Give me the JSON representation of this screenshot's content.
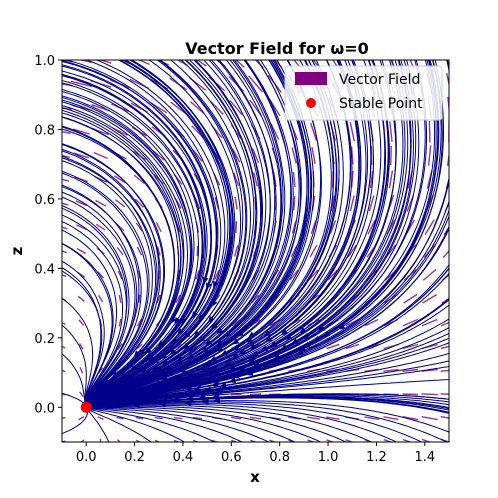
{
  "chart_data": {
    "type": "streamplot",
    "title": "Vector Field for ω=0",
    "xlabel": "x",
    "ylabel": "z",
    "xlim": [
      -0.1,
      1.5
    ],
    "ylim": [
      -0.1,
      1.0
    ],
    "xticks": [
      "0.0",
      "0.2",
      "0.4",
      "0.6",
      "0.8",
      "1.0",
      "1.2",
      "1.4"
    ],
    "yticks": [
      "0.0",
      "0.2",
      "0.4",
      "0.6",
      "0.8",
      "1.0"
    ],
    "grid": false,
    "legend_position": "top-right",
    "series": [
      {
        "name": "Vector Field",
        "kind": "quiver",
        "color": "#800080"
      },
      {
        "name": "Stable Point",
        "kind": "point",
        "color": "#ff0000",
        "points": [
          [
            0.0,
            0.0
          ]
        ]
      }
    ],
    "streamline_color": "#00008b"
  }
}
